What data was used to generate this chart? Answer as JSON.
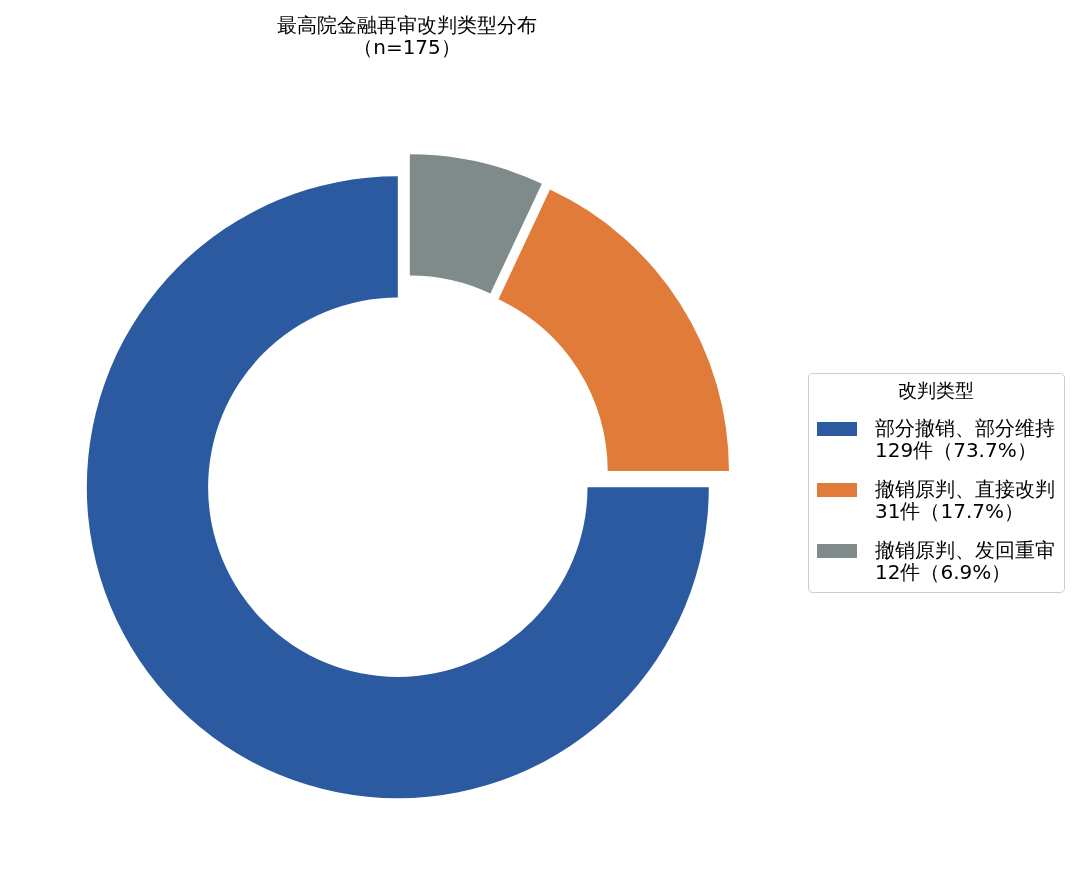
{
  "chart_data": {
    "type": "donut",
    "title": "最高院金融再审改判类型分布",
    "subtitle": "（n=175）",
    "legend_title": "改判类型",
    "categories": [
      "部分撤销、部分维持",
      "撤销原判、直接改判",
      "撤销原判、发回重审"
    ],
    "values": [
      129,
      31,
      12
    ],
    "value_labels": [
      "129件（73.7%）",
      "31件（17.7%）",
      "12件（6.9%）"
    ],
    "colors": [
      "#2c5aa0",
      "#e07b3a",
      "#7f8b8a"
    ],
    "legend": "right"
  }
}
